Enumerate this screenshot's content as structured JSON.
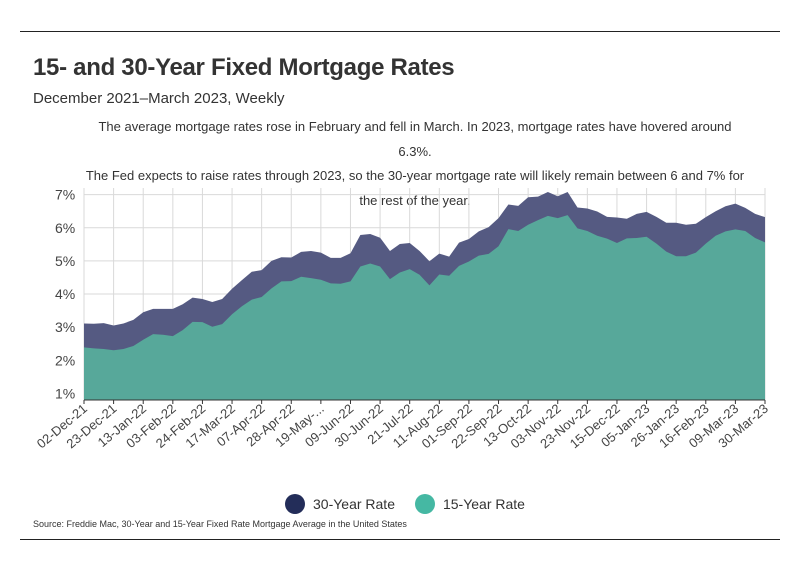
{
  "header": {
    "title": "15- and 30-Year Fixed Mortgage Rates",
    "subtitle": "December 2021–March 2023, Weekly",
    "description_line1": "The average mortgage rates rose in February and fell in March. In 2023, mortgage rates have hovered around 6.3%.",
    "description_line2": "The Fed expects to raise rates through 2023, so the 30-year mortgage rate will likely remain between 6 and 7% for",
    "description_line3": "the rest of the year."
  },
  "colors": {
    "series30": "#555a82",
    "series15": "#57a89a",
    "legend30": "#232d59",
    "legend15": "#45b8a3",
    "grid": "#d9d9d9"
  },
  "legend": {
    "label30": "30-Year Rate",
    "label15": "15-Year Rate"
  },
  "source": "Source:  Freddie Mac, 30-Year  and 15-Year Fixed Rate Mortgage Average in the United States",
  "chart_data": {
    "type": "area",
    "title": "15- and 30-Year Fixed Mortgage Rates",
    "xlabel": "",
    "ylabel": "",
    "ylim": [
      0.8,
      7.2
    ],
    "yticks": [
      "1%",
      "2%",
      "3%",
      "4%",
      "5%",
      "6%",
      "7%"
    ],
    "ytick_values": [
      1,
      2,
      3,
      4,
      5,
      6,
      7
    ],
    "xtick_labels": [
      "02-Dec-21",
      "23-Dec-21",
      "13-Jan-22",
      "03-Feb-22",
      "24-Feb-22",
      "17-Mar-22",
      "07-Apr-22",
      "28-Apr-22",
      "19-May-...",
      "09-Jun-22",
      "30-Jun-22",
      "21-Jul-22",
      "11-Aug-22",
      "01-Sep-22",
      "22-Sep-22",
      "13-Oct-22",
      "03-Nov-22",
      "23-Nov-22",
      "15-Dec-22",
      "05-Jan-23",
      "26-Jan-23",
      "16-Feb-23",
      "09-Mar-23",
      "30-Mar-23"
    ],
    "xtick_index": [
      0,
      3,
      6,
      9,
      12,
      15,
      18,
      21,
      24,
      27,
      30,
      33,
      36,
      39,
      42,
      45,
      48,
      51,
      54,
      57,
      60,
      63,
      66,
      69
    ],
    "series": [
      {
        "name": "30-Year Rate",
        "values": [
          3.11,
          3.1,
          3.12,
          3.05,
          3.11,
          3.22,
          3.45,
          3.55,
          3.55,
          3.55,
          3.69,
          3.89,
          3.85,
          3.76,
          3.85,
          4.16,
          4.42,
          4.67,
          4.72,
          5.0,
          5.11,
          5.1,
          5.27,
          5.3,
          5.25,
          5.09,
          5.09,
          5.23,
          5.78,
          5.81,
          5.7,
          5.3,
          5.51,
          5.54,
          5.3,
          4.99,
          5.22,
          5.13,
          5.55,
          5.66,
          5.89,
          6.02,
          6.29,
          6.7,
          6.66,
          6.92,
          6.94,
          7.08,
          6.95,
          7.08,
          6.61,
          6.58,
          6.49,
          6.33,
          6.31,
          6.27,
          6.42,
          6.48,
          6.33,
          6.15,
          6.15,
          6.09,
          6.12,
          6.32,
          6.5,
          6.65,
          6.73,
          6.6,
          6.42,
          6.32
        ]
      },
      {
        "name": "15-Year Rate",
        "values": [
          2.39,
          2.36,
          2.34,
          2.3,
          2.34,
          2.43,
          2.62,
          2.79,
          2.77,
          2.73,
          2.91,
          3.16,
          3.15,
          3.01,
          3.09,
          3.39,
          3.63,
          3.83,
          3.91,
          4.17,
          4.38,
          4.39,
          4.52,
          4.48,
          4.43,
          4.32,
          4.31,
          4.38,
          4.83,
          4.92,
          4.83,
          4.45,
          4.65,
          4.75,
          4.58,
          4.26,
          4.59,
          4.55,
          4.85,
          4.98,
          5.16,
          5.21,
          5.44,
          5.96,
          5.9,
          6.09,
          6.23,
          6.36,
          6.29,
          6.38,
          5.98,
          5.9,
          5.76,
          5.67,
          5.54,
          5.68,
          5.69,
          5.73,
          5.52,
          5.28,
          5.14,
          5.14,
          5.25,
          5.52,
          5.76,
          5.89,
          5.95,
          5.9,
          5.69,
          5.56
        ]
      }
    ]
  }
}
